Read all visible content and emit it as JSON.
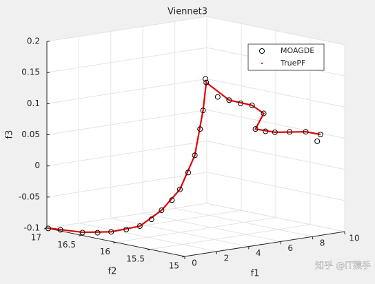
{
  "chart_data": {
    "type": "scatter3d",
    "title": "Viennet3",
    "xlabel": "f1",
    "ylabel": "f2",
    "zlabel": "f3",
    "xlim": [
      0,
      10
    ],
    "xticks": [
      0,
      2,
      4,
      6,
      8,
      10
    ],
    "ylim": [
      15,
      17
    ],
    "yticks": [
      15,
      15.5,
      16,
      16.5,
      17
    ],
    "zlim": [
      -0.1,
      0.2
    ],
    "zticks": [
      -0.1,
      -0.05,
      0,
      0.05,
      0.1,
      0.15,
      0.2
    ],
    "grid": true,
    "legend": "northeast",
    "series": [
      {
        "name": "MOAGDE",
        "color": "#000000",
        "marker": "circle",
        "x": [
          0,
          0.2,
          0.5,
          0.8,
          1.0,
          1.3,
          1.5,
          1.8,
          2.0,
          2.3,
          2.5,
          2.8,
          3.0,
          3.2,
          3.3,
          3.5,
          3.45,
          4.0,
          4.5,
          5.0,
          5.5,
          5.8,
          5.5,
          6.0,
          6.5,
          7.2,
          8.0,
          8.7,
          8.5
        ],
        "y": [
          16.98,
          16.85,
          16.6,
          16.45,
          16.3,
          16.15,
          16.0,
          15.9,
          15.8,
          15.72,
          15.65,
          15.6,
          15.55,
          15.52,
          15.5,
          15.5,
          15.5,
          15.45,
          15.4,
          15.35,
          15.3,
          15.2,
          15.25,
          15.22,
          15.2,
          15.15,
          15.1,
          15.05,
          15.05
        ],
        "z": [
          -0.1,
          -0.1,
          -0.1,
          -0.098,
          -0.094,
          -0.088,
          -0.08,
          -0.068,
          -0.052,
          -0.035,
          -0.017,
          0.01,
          0.038,
          0.08,
          0.11,
          0.154,
          0.16,
          0.13,
          0.124,
          0.118,
          0.114,
          0.102,
          0.077,
          0.072,
          0.069,
          0.068,
          0.066,
          0.06,
          0.05
        ]
      },
      {
        "name": "TruePF",
        "color": "#e00000",
        "marker": "dot",
        "x": [
          0,
          0.5,
          1,
          1.5,
          2,
          2.5,
          3,
          3.3,
          3.5,
          4.5,
          5.5,
          5.8,
          5.5,
          6.5,
          8,
          8.7
        ],
        "y": [
          16.98,
          16.6,
          16.3,
          16.0,
          15.8,
          15.65,
          15.55,
          15.5,
          15.5,
          15.4,
          15.3,
          15.2,
          15.25,
          15.2,
          15.1,
          15.05
        ],
        "z": [
          -0.0995,
          -0.0995,
          -0.094,
          -0.08,
          -0.052,
          -0.017,
          0.038,
          0.11,
          0.154,
          0.124,
          0.114,
          0.102,
          0.077,
          0.069,
          0.066,
          0.06
        ]
      }
    ]
  },
  "watermark": "知乎 @IT猿手"
}
